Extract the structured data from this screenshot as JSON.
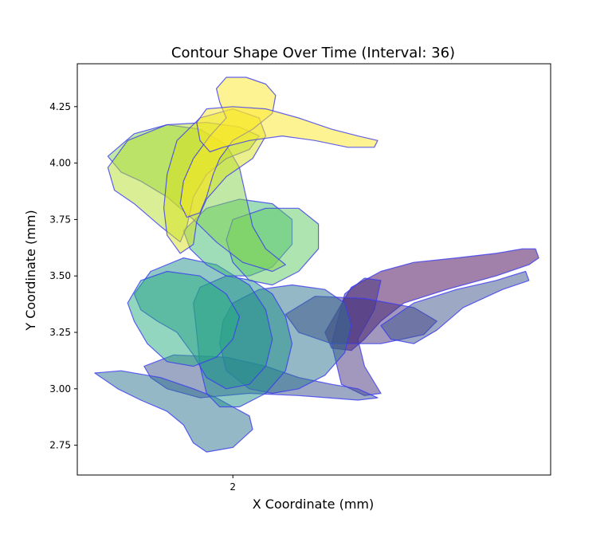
{
  "chart_data": {
    "type": "area",
    "title": "Contour Shape Over Time (Interval: 36)",
    "xlabel": "X Coordinate (mm)",
    "ylabel": "Y Coordinate (mm)",
    "xlim": [
      1.527,
      2.966
    ],
    "ylim": [
      2.618,
      4.44
    ],
    "xticks": [
      2
    ],
    "xtick_labels": [
      "2"
    ],
    "yticks": [
      2.75,
      3.0,
      3.25,
      3.5,
      3.75,
      4.0,
      4.25
    ],
    "ytick_labels": [
      "2.75",
      "3.00",
      "3.25",
      "3.50",
      "3.75",
      "4.00",
      "4.25"
    ],
    "grid": false,
    "legend": "none",
    "edge_color": "#3b3bf0",
    "fill_opacity": 0.5,
    "colormap": "viridis",
    "series": [
      {
        "color": "#440154",
        "points": [
          [
            2.28,
            3.25
          ],
          [
            2.36,
            3.45
          ],
          [
            2.45,
            3.52
          ],
          [
            2.55,
            3.56
          ],
          [
            2.68,
            3.58
          ],
          [
            2.8,
            3.6
          ],
          [
            2.88,
            3.62
          ],
          [
            2.92,
            3.62
          ],
          [
            2.93,
            3.58
          ],
          [
            2.9,
            3.55
          ],
          [
            2.8,
            3.5
          ],
          [
            2.65,
            3.44
          ],
          [
            2.52,
            3.38
          ],
          [
            2.45,
            3.3
          ],
          [
            2.4,
            3.22
          ],
          [
            2.36,
            3.17
          ],
          [
            2.3,
            3.18
          ]
        ]
      },
      {
        "color": "#46327e",
        "points": [
          [
            2.3,
            3.2
          ],
          [
            2.34,
            3.42
          ],
          [
            2.4,
            3.49
          ],
          [
            2.45,
            3.48
          ],
          [
            2.43,
            3.35
          ],
          [
            2.38,
            3.22
          ],
          [
            2.4,
            3.1
          ],
          [
            2.45,
            2.98
          ],
          [
            2.4,
            2.97
          ],
          [
            2.33,
            3.02
          ]
        ]
      },
      {
        "color": "#46327e",
        "points": [
          [
            2.16,
            3.33
          ],
          [
            2.25,
            3.41
          ],
          [
            2.4,
            3.4
          ],
          [
            2.55,
            3.36
          ],
          [
            2.62,
            3.3
          ],
          [
            2.58,
            3.24
          ],
          [
            2.45,
            3.2
          ],
          [
            2.3,
            3.2
          ],
          [
            2.2,
            3.25
          ]
        ]
      },
      {
        "color": "#3b528b",
        "points": [
          [
            2.45,
            3.28
          ],
          [
            2.55,
            3.38
          ],
          [
            2.68,
            3.44
          ],
          [
            2.8,
            3.48
          ],
          [
            2.89,
            3.52
          ],
          [
            2.9,
            3.48
          ],
          [
            2.82,
            3.44
          ],
          [
            2.7,
            3.36
          ],
          [
            2.62,
            3.26
          ],
          [
            2.55,
            3.2
          ],
          [
            2.48,
            3.22
          ]
        ]
      },
      {
        "color": "#3b528b",
        "points": [
          [
            1.73,
            3.1
          ],
          [
            1.82,
            3.15
          ],
          [
            1.98,
            3.14
          ],
          [
            2.1,
            3.1
          ],
          [
            2.2,
            3.05
          ],
          [
            2.3,
            3.02
          ],
          [
            2.38,
            3.0
          ],
          [
            2.44,
            2.96
          ],
          [
            2.38,
            2.95
          ],
          [
            2.2,
            2.97
          ],
          [
            2.05,
            2.98
          ],
          [
            1.9,
            2.96
          ],
          [
            1.8,
            3.0
          ],
          [
            1.75,
            3.05
          ]
        ]
      },
      {
        "color": "#2c728e",
        "points": [
          [
            1.58,
            3.07
          ],
          [
            1.66,
            3.08
          ],
          [
            1.78,
            3.05
          ],
          [
            1.88,
            3.0
          ],
          [
            1.95,
            2.96
          ],
          [
            2.0,
            2.92
          ],
          [
            2.05,
            2.88
          ],
          [
            2.06,
            2.82
          ],
          [
            2.0,
            2.74
          ],
          [
            1.92,
            2.72
          ],
          [
            1.88,
            2.76
          ],
          [
            1.85,
            2.84
          ],
          [
            1.8,
            2.9
          ],
          [
            1.72,
            2.95
          ],
          [
            1.65,
            3.0
          ]
        ]
      },
      {
        "color": "#2c728e",
        "points": [
          [
            2.0,
            3.38
          ],
          [
            2.08,
            3.44
          ],
          [
            2.18,
            3.46
          ],
          [
            2.28,
            3.44
          ],
          [
            2.34,
            3.38
          ],
          [
            2.36,
            3.28
          ],
          [
            2.34,
            3.16
          ],
          [
            2.28,
            3.06
          ],
          [
            2.2,
            3.0
          ],
          [
            2.12,
            2.98
          ],
          [
            2.05,
            3.0
          ],
          [
            1.98,
            3.08
          ],
          [
            1.96,
            3.2
          ],
          [
            1.97,
            3.3
          ]
        ]
      },
      {
        "color": "#21918c",
        "points": [
          [
            1.9,
            3.45
          ],
          [
            1.98,
            3.5
          ],
          [
            2.06,
            3.48
          ],
          [
            2.12,
            3.42
          ],
          [
            2.16,
            3.32
          ],
          [
            2.18,
            3.2
          ],
          [
            2.16,
            3.08
          ],
          [
            2.1,
            2.98
          ],
          [
            2.02,
            2.92
          ],
          [
            1.96,
            2.92
          ],
          [
            1.92,
            2.98
          ],
          [
            1.9,
            3.1
          ],
          [
            1.89,
            3.25
          ],
          [
            1.88,
            3.38
          ]
        ]
      },
      {
        "color": "#21918c",
        "points": [
          [
            1.7,
            3.42
          ],
          [
            1.75,
            3.52
          ],
          [
            1.85,
            3.58
          ],
          [
            1.95,
            3.55
          ],
          [
            2.05,
            3.46
          ],
          [
            2.1,
            3.35
          ],
          [
            2.12,
            3.22
          ],
          [
            2.1,
            3.1
          ],
          [
            2.05,
            3.02
          ],
          [
            1.98,
            3.0
          ],
          [
            1.92,
            3.05
          ],
          [
            1.88,
            3.15
          ],
          [
            1.83,
            3.25
          ],
          [
            1.77,
            3.3
          ],
          [
            1.72,
            3.35
          ]
        ]
      },
      {
        "color": "#28ae80",
        "points": [
          [
            1.68,
            3.38
          ],
          [
            1.72,
            3.48
          ],
          [
            1.8,
            3.52
          ],
          [
            1.9,
            3.5
          ],
          [
            1.98,
            3.42
          ],
          [
            2.02,
            3.32
          ],
          [
            2.0,
            3.22
          ],
          [
            1.95,
            3.14
          ],
          [
            1.88,
            3.1
          ],
          [
            1.8,
            3.12
          ],
          [
            1.74,
            3.2
          ],
          [
            1.7,
            3.3
          ]
        ]
      },
      {
        "color": "#3fbc73",
        "points": [
          [
            1.85,
            3.7
          ],
          [
            1.92,
            3.8
          ],
          [
            2.02,
            3.84
          ],
          [
            2.12,
            3.82
          ],
          [
            2.18,
            3.75
          ],
          [
            2.18,
            3.64
          ],
          [
            2.12,
            3.54
          ],
          [
            2.05,
            3.5
          ],
          [
            1.98,
            3.5
          ],
          [
            1.92,
            3.55
          ],
          [
            1.87,
            3.62
          ]
        ]
      },
      {
        "color": "#5ec962",
        "points": [
          [
            2.0,
            3.75
          ],
          [
            2.1,
            3.8
          ],
          [
            2.2,
            3.8
          ],
          [
            2.26,
            3.73
          ],
          [
            2.26,
            3.62
          ],
          [
            2.2,
            3.52
          ],
          [
            2.12,
            3.46
          ],
          [
            2.05,
            3.48
          ],
          [
            2.0,
            3.56
          ],
          [
            1.98,
            3.66
          ]
        ]
      },
      {
        "color": "#84d44b",
        "points": [
          [
            1.62,
            4.03
          ],
          [
            1.7,
            4.13
          ],
          [
            1.8,
            4.17
          ],
          [
            1.9,
            4.15
          ],
          [
            1.98,
            4.08
          ],
          [
            2.02,
            3.98
          ],
          [
            2.04,
            3.85
          ],
          [
            2.06,
            3.72
          ],
          [
            2.1,
            3.62
          ],
          [
            2.16,
            3.55
          ],
          [
            2.12,
            3.52
          ],
          [
            2.03,
            3.56
          ],
          [
            1.95,
            3.65
          ],
          [
            1.88,
            3.75
          ],
          [
            1.8,
            3.85
          ],
          [
            1.72,
            3.92
          ],
          [
            1.66,
            3.96
          ]
        ]
      },
      {
        "color": "#b5de2b",
        "points": [
          [
            1.62,
            3.98
          ],
          [
            1.68,
            4.1
          ],
          [
            1.8,
            4.17
          ],
          [
            1.92,
            4.18
          ],
          [
            2.02,
            4.16
          ],
          [
            2.08,
            4.12
          ],
          [
            2.05,
            4.06
          ],
          [
            1.98,
            4.02
          ],
          [
            1.92,
            3.95
          ],
          [
            1.88,
            3.85
          ],
          [
            1.86,
            3.72
          ],
          [
            1.84,
            3.65
          ],
          [
            1.78,
            3.72
          ],
          [
            1.7,
            3.82
          ],
          [
            1.64,
            3.88
          ]
        ]
      },
      {
        "color": "#d8e219",
        "points": [
          [
            1.83,
            4.1
          ],
          [
            1.9,
            4.2
          ],
          [
            2.0,
            4.24
          ],
          [
            2.08,
            4.2
          ],
          [
            2.1,
            4.12
          ],
          [
            2.06,
            4.02
          ],
          [
            1.98,
            3.94
          ],
          [
            1.92,
            3.84
          ],
          [
            1.89,
            3.74
          ],
          [
            1.88,
            3.64
          ],
          [
            1.84,
            3.6
          ],
          [
            1.8,
            3.68
          ],
          [
            1.79,
            3.8
          ],
          [
            1.8,
            3.95
          ]
        ]
      },
      {
        "color": "#fde725",
        "points": [
          [
            1.98,
            4.38
          ],
          [
            2.04,
            4.38
          ],
          [
            2.1,
            4.35
          ],
          [
            2.13,
            4.3
          ],
          [
            2.12,
            4.22
          ],
          [
            2.06,
            4.15
          ],
          [
            2.0,
            4.1
          ],
          [
            1.96,
            4.02
          ],
          [
            1.94,
            3.95
          ],
          [
            1.92,
            3.85
          ],
          [
            1.9,
            3.78
          ],
          [
            1.86,
            3.76
          ],
          [
            1.84,
            3.82
          ],
          [
            1.85,
            3.92
          ],
          [
            1.88,
            4.02
          ],
          [
            1.93,
            4.12
          ],
          [
            1.98,
            4.2
          ],
          [
            1.96,
            4.27
          ],
          [
            1.95,
            4.33
          ]
        ]
      },
      {
        "color": "#fde725",
        "points": [
          [
            1.92,
            4.24
          ],
          [
            2.0,
            4.25
          ],
          [
            2.1,
            4.24
          ],
          [
            2.2,
            4.2
          ],
          [
            2.3,
            4.15
          ],
          [
            2.38,
            4.12
          ],
          [
            2.44,
            4.1
          ],
          [
            2.43,
            4.07
          ],
          [
            2.35,
            4.07
          ],
          [
            2.25,
            4.1
          ],
          [
            2.15,
            4.12
          ],
          [
            2.05,
            4.1
          ],
          [
            1.97,
            4.07
          ],
          [
            1.93,
            4.05
          ],
          [
            1.9,
            4.1
          ],
          [
            1.89,
            4.18
          ]
        ]
      }
    ]
  }
}
